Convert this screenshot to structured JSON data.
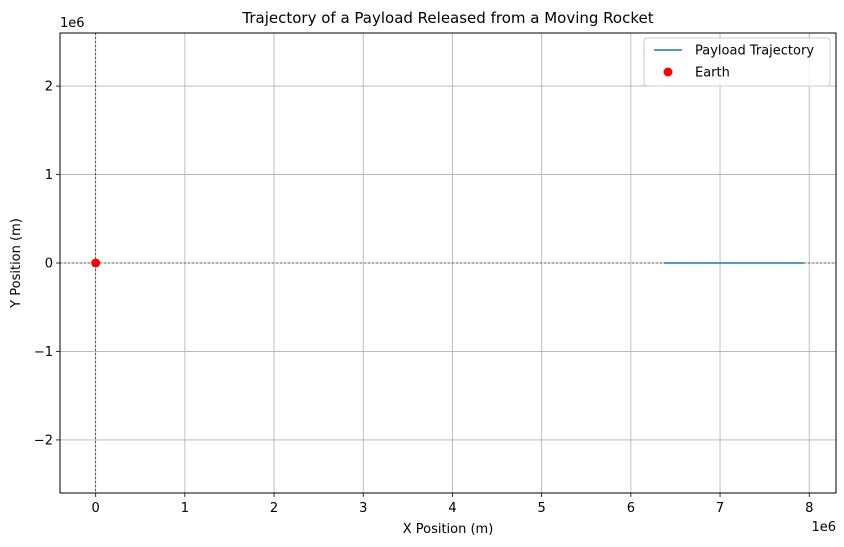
{
  "chart_data": {
    "type": "line",
    "title": "Trajectory of a Payload Released from a Moving Rocket",
    "xlabel": "X Position (m)",
    "ylabel": "Y Position (m)",
    "x_offset_label": "1e6",
    "y_offset_label": "1e6",
    "xlim": [
      -0.4,
      8.3
    ],
    "ylim": [
      -2.6,
      2.6
    ],
    "x_ticks": [
      0,
      1,
      2,
      3,
      4,
      5,
      6,
      7,
      8
    ],
    "x_tick_labels": [
      "0",
      "1",
      "2",
      "3",
      "4",
      "5",
      "6",
      "7",
      "8"
    ],
    "y_ticks": [
      -2,
      -1,
      0,
      1,
      2
    ],
    "y_tick_labels": [
      "−2",
      "−1",
      "0",
      "1",
      "2"
    ],
    "grid": true,
    "reference_lines": {
      "x": 0,
      "y": 0
    },
    "legend": {
      "placement": "top-right",
      "entries": [
        "Payload Trajectory",
        "Earth"
      ]
    },
    "series": [
      {
        "name": "Payload Trajectory",
        "kind": "line",
        "color": "#1f77b4",
        "points": [
          [
            6.37,
            0.0
          ],
          [
            7.15,
            0.0
          ],
          [
            7.94,
            0.0
          ]
        ]
      },
      {
        "name": "Earth",
        "kind": "marker",
        "color": "#ff0000",
        "points": [
          [
            0,
            0
          ]
        ]
      }
    ]
  }
}
